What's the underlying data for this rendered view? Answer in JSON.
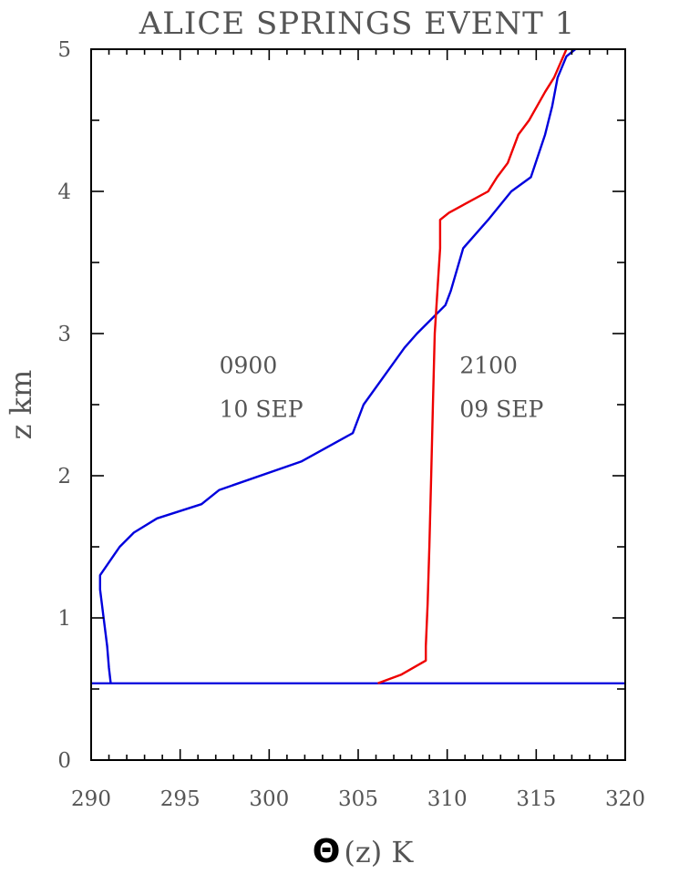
{
  "chart_data": {
    "type": "line",
    "title": "ALICE SPRINGS  EVENT 1",
    "xlabel_symbol": "Θ",
    "xlabel_rest": "(z) K",
    "ylabel": "z km",
    "xlim": [
      290,
      320
    ],
    "ylim": [
      0,
      5
    ],
    "x_major_ticks": [
      290,
      295,
      300,
      305,
      310,
      315,
      320
    ],
    "x_minor_step": 1,
    "y_major_ticks": [
      0,
      1,
      2,
      3,
      4,
      5
    ],
    "y_minor_step": 0.5,
    "grid": false,
    "ground_level_km": 0.54,
    "ground_color": "#0000dd",
    "series": [
      {
        "name": "0900 10 SEP",
        "color": "#0000dd",
        "points": [
          [
            291.1,
            0.54
          ],
          [
            291.0,
            0.65
          ],
          [
            290.9,
            0.8
          ],
          [
            290.7,
            1.0
          ],
          [
            290.5,
            1.2
          ],
          [
            290.5,
            1.3
          ],
          [
            291.6,
            1.5
          ],
          [
            292.4,
            1.6
          ],
          [
            293.7,
            1.7
          ],
          [
            296.2,
            1.8
          ],
          [
            297.2,
            1.9
          ],
          [
            301.8,
            2.1
          ],
          [
            304.7,
            2.3
          ],
          [
            305.3,
            2.5
          ],
          [
            307.6,
            2.9
          ],
          [
            308.3,
            3.0
          ],
          [
            309.9,
            3.2
          ],
          [
            310.2,
            3.3
          ],
          [
            310.9,
            3.6
          ],
          [
            312.3,
            3.8
          ],
          [
            313.6,
            4.0
          ],
          [
            314.7,
            4.1
          ],
          [
            315.5,
            4.4
          ],
          [
            315.9,
            4.6
          ],
          [
            316.2,
            4.8
          ],
          [
            316.7,
            4.95
          ],
          [
            317.2,
            5.0
          ]
        ]
      },
      {
        "name": "2100 09 SEP",
        "color": "#ee0000",
        "points": [
          [
            306.1,
            0.54
          ],
          [
            307.4,
            0.6
          ],
          [
            308.8,
            0.7
          ],
          [
            308.8,
            0.8
          ],
          [
            308.9,
            1.1
          ],
          [
            309.0,
            1.5
          ],
          [
            309.1,
            2.0
          ],
          [
            309.2,
            2.5
          ],
          [
            309.3,
            3.0
          ],
          [
            309.5,
            3.4
          ],
          [
            309.6,
            3.6
          ],
          [
            309.6,
            3.8
          ],
          [
            310.1,
            3.85
          ],
          [
            312.3,
            4.0
          ],
          [
            312.8,
            4.1
          ],
          [
            313.4,
            4.2
          ],
          [
            314.0,
            4.4
          ],
          [
            314.6,
            4.5
          ],
          [
            315.5,
            4.7
          ],
          [
            316.0,
            4.8
          ],
          [
            316.7,
            5.0
          ]
        ]
      }
    ],
    "annotations": [
      {
        "line1": "0900",
        "line2": "10 SEP",
        "x": 297.2,
        "y": 2.72
      },
      {
        "line1": "2100",
        "line2": "09 SEP",
        "x": 310.7,
        "y": 2.72
      }
    ]
  }
}
